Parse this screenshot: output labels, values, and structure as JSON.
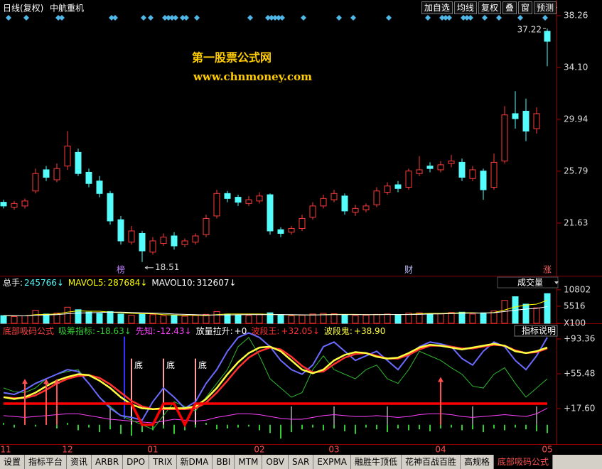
{
  "header": {
    "title": "日线(复权)",
    "stock": "中航重机",
    "buttons": [
      "加自选",
      "均线",
      "复权",
      "叠",
      "窗",
      "预测"
    ]
  },
  "watermark": {
    "line1": "第一股票公式网",
    "line2": "www.chnmoney.com"
  },
  "tabs": [
    "设置",
    "指标平台",
    "资讯",
    "ARBR",
    "DPO",
    "TRIX",
    "新DMA",
    "BBI",
    "MTM",
    "OBV",
    "SAR",
    "EXPMA",
    "融胜牛顶低",
    "花神百战百胜",
    "高规格",
    "底部吸码公式"
  ],
  "active_tab": 15,
  "chart_data": [
    {
      "type": "candlestick",
      "open": [
        23.3,
        22.9,
        23.0,
        24.2,
        25.9,
        25.1,
        26.2,
        27.3,
        25.7,
        25.0,
        24.0,
        21.9,
        20.1,
        20.8,
        19.3,
        20.0,
        20.6,
        19.9,
        20.1,
        20.7,
        22.2,
        24.0,
        23.7,
        23.2,
        23.4,
        23.9,
        21.1,
        20.9,
        21.2,
        22.1,
        23.0,
        23.5,
        23.8,
        22.5,
        22.7,
        23.1,
        24.1,
        24.7,
        24.5,
        25.6,
        26.2,
        25.9,
        26.4,
        26.5,
        25.2,
        25.8,
        24.5,
        26.6,
        30.4,
        30.6,
        29.2,
        37.0
      ],
      "high": [
        23.5,
        23.4,
        23.6,
        26.0,
        26.2,
        26.4,
        29.0,
        27.6,
        26.0,
        25.4,
        24.2,
        22.2,
        21.4,
        21.0,
        20.5,
        20.8,
        20.9,
        20.4,
        20.8,
        22.3,
        24.3,
        24.2,
        23.9,
        23.8,
        24.1,
        24.0,
        21.3,
        21.4,
        22.3,
        23.3,
        23.9,
        24.3,
        24.0,
        23.1,
        23.2,
        24.5,
        24.9,
        25.0,
        26.0,
        27.0,
        26.5,
        26.6,
        27.1,
        26.8,
        26.2,
        26.0,
        27.2,
        31.0,
        32.2,
        31.6,
        30.9,
        37.22
      ],
      "low": [
        22.8,
        22.7,
        22.8,
        24.0,
        25.0,
        24.9,
        25.9,
        25.4,
        24.5,
        23.7,
        21.5,
        19.9,
        19.9,
        18.51,
        19.1,
        19.8,
        19.5,
        19.7,
        19.9,
        20.5,
        22.0,
        23.3,
        23.0,
        23.0,
        23.2,
        20.7,
        20.5,
        20.7,
        21.0,
        21.9,
        22.8,
        23.3,
        22.3,
        22.2,
        22.5,
        22.9,
        23.9,
        24.1,
        24.3,
        25.4,
        25.7,
        25.7,
        26.1,
        25.0,
        25.0,
        23.5,
        24.3,
        26.4,
        29.2,
        28.2,
        28.8,
        34.2
      ],
      "close": [
        23.0,
        23.2,
        23.4,
        25.6,
        25.3,
        26.0,
        27.8,
        25.6,
        24.8,
        24.0,
        21.8,
        20.2,
        21.0,
        19.4,
        20.2,
        20.5,
        19.8,
        20.2,
        20.6,
        22.0,
        24.0,
        23.6,
        23.3,
        23.5,
        23.8,
        21.0,
        20.8,
        21.2,
        22.0,
        23.0,
        23.6,
        24.0,
        22.6,
        22.8,
        23.0,
        24.2,
        24.6,
        24.4,
        25.8,
        25.9,
        26.0,
        26.3,
        26.6,
        25.3,
        25.9,
        24.3,
        26.5,
        30.3,
        30.0,
        29.0,
        30.4,
        36.2
      ],
      "up_color": "#ff3c3c",
      "down_color": "#54fcfc",
      "ylim": [
        17.41,
        39.51
      ],
      "yticks": [
        38.26,
        {
          "value": 34.1,
          "label": "34.10"
        },
        29.94,
        25.79,
        21.63
      ],
      "events": [
        {
          "index": 11,
          "label": "榜"
        },
        {
          "index": 38,
          "label": "财"
        },
        {
          "index": 51,
          "label": "涨"
        }
      ]
    },
    {
      "type": "volume",
      "total": {
        "name": "总手:",
        "readout": "245766↓"
      },
      "selector": "成交量",
      "values": [
        2500,
        2200,
        2400,
        4200,
        3000,
        3300,
        5200,
        4400,
        3600,
        3200,
        3800,
        3000,
        2600,
        3100,
        2800,
        2400,
        2600,
        2300,
        2500,
        2900,
        3800,
        3000,
        2700,
        2500,
        2800,
        3400,
        2800,
        2400,
        2600,
        3000,
        3200,
        3100,
        2700,
        2500,
        2600,
        2900,
        3000,
        2800,
        3300,
        3400,
        3100,
        3200,
        3500,
        3600,
        3000,
        3400,
        4000,
        7400,
        8600,
        6200,
        5000,
        9600
      ],
      "series": [
        {
          "name": "MAVOL5:",
          "readout": "287684↓",
          "color": "#ffff00",
          "values": [
            2500,
            2400,
            2400,
            2800,
            2900,
            3000,
            3600,
            4000,
            3900,
            3900,
            3600,
            3400,
            3200,
            3100,
            3100,
            2800,
            2700,
            2600,
            2600,
            2500,
            2800,
            3000,
            3000,
            3000,
            3000,
            2900,
            2800,
            2700,
            2700,
            2700,
            2800,
            2900,
            2900,
            2900,
            2800,
            2800,
            2900,
            2800,
            2900,
            3100,
            3200,
            3200,
            3300,
            3400,
            3400,
            3300,
            3500,
            4300,
            5300,
            5900,
            6200,
            7400
          ]
        },
        {
          "name": "MAVOL10:",
          "readout": "312607↓",
          "color": "#ffffff",
          "values": [
            2500,
            2450,
            2420,
            2600,
            2700,
            2800,
            3100,
            3300,
            3400,
            3500,
            3600,
            3600,
            3500,
            3400,
            3300,
            3200,
            3000,
            2900,
            2800,
            2700,
            2700,
            2700,
            2750,
            2800,
            2800,
            2800,
            2850,
            2800,
            2750,
            2700,
            2750,
            2800,
            2800,
            2800,
            2800,
            2800,
            2850,
            2850,
            2850,
            2900,
            3000,
            3050,
            3150,
            3250,
            3300,
            3300,
            3400,
            3800,
            4250,
            4600,
            4800,
            5400
          ]
        }
      ],
      "ylim": [
        0,
        14900
      ],
      "yticks": [
        10802,
        5516,
        {
          "value": 0,
          "label": "X100"
        }
      ]
    },
    {
      "type": "indicator",
      "title": "底部吸码公式",
      "selector": "指标说明",
      "categories": [
        "11",
        null,
        null,
        null,
        null,
        null,
        "12",
        null,
        null,
        null,
        null,
        null,
        null,
        null,
        "01",
        null,
        null,
        null,
        null,
        null,
        null,
        null,
        null,
        null,
        "02",
        null,
        null,
        null,
        null,
        null,
        null,
        "03",
        null,
        null,
        null,
        null,
        null,
        null,
        null,
        null,
        null,
        "04",
        null,
        null,
        null,
        null,
        null,
        null,
        null,
        null,
        null,
        "05"
      ],
      "series": [
        {
          "name": "吸筹指标:",
          "readout": "-18.63↓",
          "color": "#33cc33",
          "style": "bar",
          "values": [
            2,
            -3,
            4,
            -2,
            3,
            -4,
            2,
            -6,
            -3,
            -8,
            -5,
            -10,
            -12,
            -8,
            -6,
            -4,
            -10,
            -6,
            -3,
            2,
            -5,
            -4,
            -3,
            -2,
            -6,
            -9,
            -15,
            -8,
            -5,
            -3,
            -6,
            -4,
            -7,
            -10,
            -3,
            -5,
            -8,
            -4,
            -6,
            -5,
            -7,
            -4,
            -3,
            -6,
            -5,
            -8,
            -4,
            -6,
            -3,
            -5,
            -7,
            -9
          ]
        },
        {
          "name": "先知:",
          "readout": "-12.43↓",
          "color": "#ff40ff",
          "style": "line",
          "values": [
            10,
            9,
            8,
            9,
            10,
            11,
            12,
            12,
            10,
            8,
            6,
            5,
            4,
            3,
            2,
            4,
            6,
            5,
            4,
            5,
            8,
            10,
            12,
            12,
            11,
            9,
            7,
            6,
            6,
            8,
            10,
            11,
            10,
            9,
            9,
            10,
            9,
            8,
            9,
            11,
            12,
            12,
            11,
            9,
            8,
            9,
            10,
            11,
            10,
            9,
            12,
            18
          ]
        },
        {
          "name": "放量拉升:",
          "readout": "+0",
          "color": "#ffffff",
          "style": "stick",
          "values": [
            0,
            0,
            20,
            0,
            20,
            0,
            0,
            0,
            0,
            0,
            20,
            0,
            20,
            0,
            0,
            20,
            0,
            0,
            20,
            0,
            0,
            0,
            0,
            0,
            0,
            0,
            0,
            20,
            0,
            0,
            0,
            20,
            0,
            0,
            0,
            0,
            20,
            0,
            0,
            0,
            0,
            0,
            0,
            0,
            20,
            0,
            0,
            0,
            0,
            0,
            20,
            0
          ]
        },
        {
          "name": "波段王:",
          "readout": "+32.05↓",
          "color": "#ff3030",
          "style": "thick",
          "values": [
            30,
            29,
            29,
            32,
            38,
            45,
            50,
            53,
            54,
            51,
            44,
            35,
            26,
            20,
            17,
            17,
            17,
            17,
            18,
            24,
            35,
            48,
            62,
            73,
            80,
            84,
            82,
            74,
            64,
            57,
            58,
            66,
            73,
            77,
            78,
            75,
            72,
            72,
            76,
            82,
            86,
            86,
            85,
            83,
            83,
            85,
            87,
            86,
            81,
            78,
            79,
            83
          ]
        },
        {
          "name": "波段鬼:",
          "readout": "+38.90",
          "color": "#ffff40",
          "style": "thick",
          "values": [
            30,
            28,
            30,
            35,
            42,
            48,
            52,
            55,
            54,
            48,
            40,
            30,
            22,
            18,
            17,
            18,
            18,
            18,
            20,
            28,
            40,
            55,
            68,
            78,
            84,
            85,
            80,
            70,
            60,
            56,
            60,
            70,
            76,
            79,
            78,
            74,
            72,
            73,
            78,
            84,
            87,
            86,
            84,
            82,
            84,
            86,
            88,
            86,
            80,
            78,
            80,
            84
          ]
        },
        {
          "color": "#6a6aff",
          "style": "line2",
          "values": [
            35,
            33,
            38,
            45,
            50,
            55,
            60,
            58,
            45,
            30,
            18,
            10,
            8,
            5,
            25,
            40,
            30,
            18,
            25,
            45,
            60,
            80,
            95,
            100,
            95,
            85,
            70,
            60,
            55,
            65,
            85,
            90,
            80,
            70,
            75,
            80,
            70,
            60,
            75,
            85,
            90,
            88,
            85,
            72,
            65,
            80,
            90,
            85,
            70,
            60,
            75,
            95
          ]
        },
        {
          "color": "#2fb82f",
          "style": "line",
          "values": [
            40,
            36,
            35,
            40,
            50,
            55,
            58,
            60,
            45,
            30,
            20,
            10,
            5,
            0,
            -5,
            10,
            25,
            20,
            15,
            30,
            45,
            60,
            85,
            95,
            75,
            50,
            40,
            30,
            35,
            60,
            75,
            60,
            55,
            50,
            60,
            65,
            50,
            45,
            60,
            80,
            75,
            70,
            62,
            55,
            42,
            40,
            55,
            62,
            45,
            30,
            40,
            50
          ]
        },
        {
          "color": "#ff0000",
          "style": "heavy",
          "values": [
            23,
            23,
            23,
            23,
            23,
            23,
            23,
            23,
            23,
            23,
            23,
            23,
            23,
            0,
            0,
            23,
            23,
            0,
            23,
            23,
            23,
            23,
            23,
            23,
            23,
            23,
            23,
            23,
            23,
            23,
            23,
            23,
            23,
            23,
            23,
            23,
            23,
            23,
            23,
            23,
            23,
            23,
            23,
            23,
            23,
            23,
            23,
            23,
            23,
            23,
            23,
            23
          ]
        }
      ],
      "arrows": [
        {
          "index": 2,
          "value": 50
        },
        {
          "index": 4,
          "value": 50
        },
        {
          "index": 5,
          "value": 50
        },
        {
          "index": 41,
          "value": 52
        }
      ],
      "bottoms": [
        {
          "index": 12,
          "value": 72,
          "label": "底"
        },
        {
          "index": 15,
          "value": 72,
          "label": "底"
        },
        {
          "index": 18,
          "value": 72,
          "label": "底"
        }
      ],
      "signal_line": {
        "index": 11,
        "from": 6,
        "to": 96,
        "color": "#3030ff"
      },
      "ylim": [
        -21.06,
        108.82
      ],
      "yticks": [
        {
          "value": 93.36,
          "label": "+93.36"
        },
        {
          "value": 55.48,
          "label": "+55.48"
        },
        {
          "value": 17.6,
          "label": "+17.60"
        }
      ]
    }
  ]
}
